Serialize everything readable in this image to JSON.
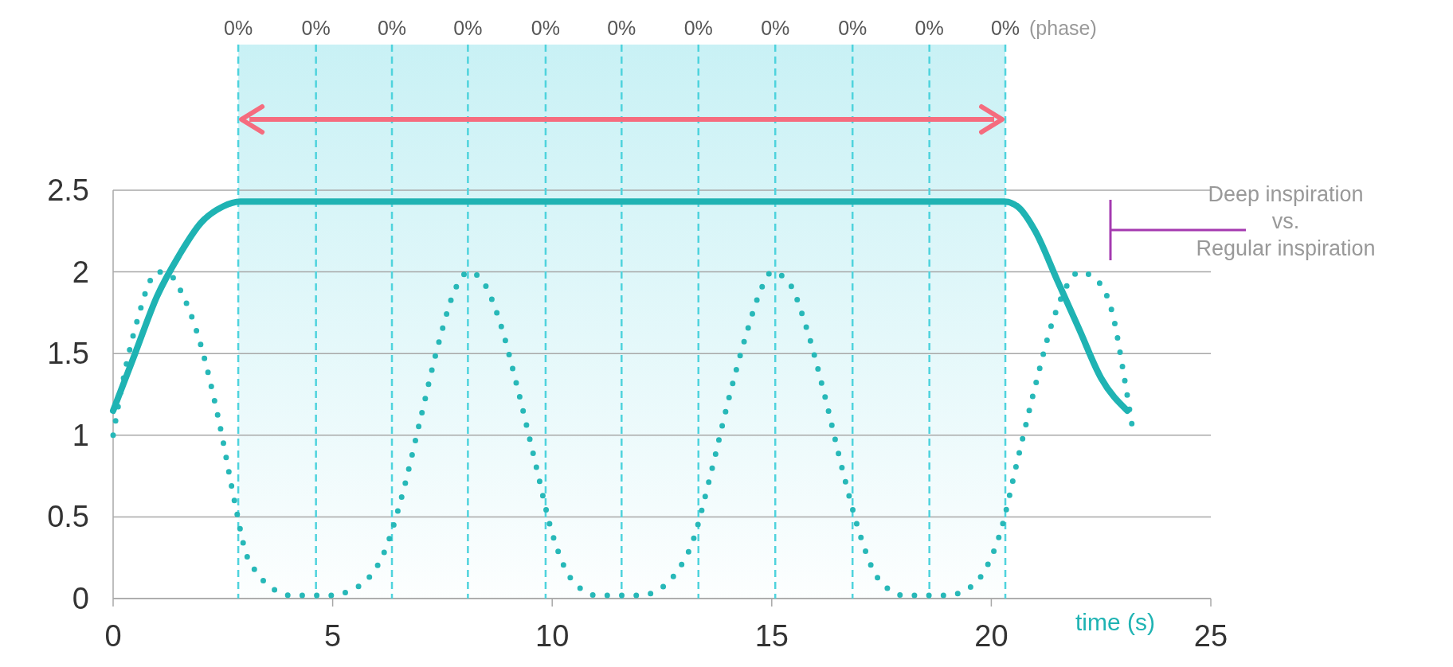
{
  "chart_data": {
    "type": "line",
    "xlabel": "time (s)",
    "xlim": [
      0,
      25
    ],
    "ylim": [
      0,
      2.5
    ],
    "xticks": [
      0,
      5,
      10,
      15,
      20,
      25
    ],
    "yticks": [
      0,
      0.5,
      1,
      1.5,
      2,
      2.5
    ],
    "grid": "y",
    "series": [
      {
        "color": "#27b8b8",
        "line_style": "dotted",
        "x": [
          0,
          0.2,
          0.4,
          0.6,
          0.8,
          1.0,
          1.3,
          1.6,
          2.0,
          2.4,
          2.8,
          3.0,
          3.3,
          3.7,
          4.0,
          4.5,
          5.0,
          5.4,
          5.8,
          6.2,
          6.6,
          7.0,
          7.4,
          7.8,
          8.1,
          8.4,
          8.8,
          9.2,
          9.6,
          10.0,
          10.3,
          10.7,
          11.0,
          11.5,
          12.0,
          12.4,
          12.8,
          13.2,
          13.6,
          14.0,
          14.4,
          14.8,
          15.0,
          15.4,
          15.8,
          16.2,
          16.6,
          17.0,
          17.3,
          17.7,
          18.0,
          18.5,
          19.0,
          19.4,
          19.8,
          20.2,
          20.6,
          21.0,
          21.4,
          21.8,
          22.0,
          22.4,
          22.8,
          23.0,
          23.2
        ],
        "values": [
          1.0,
          1.3,
          1.55,
          1.75,
          1.92,
          2.0,
          1.98,
          1.85,
          1.55,
          1.1,
          0.55,
          0.3,
          0.15,
          0.05,
          0.02,
          0.02,
          0.02,
          0.05,
          0.12,
          0.3,
          0.65,
          1.1,
          1.55,
          1.9,
          2.0,
          1.95,
          1.7,
          1.3,
          0.85,
          0.4,
          0.18,
          0.05,
          0.02,
          0.02,
          0.02,
          0.05,
          0.15,
          0.35,
          0.75,
          1.2,
          1.6,
          1.92,
          2.0,
          1.93,
          1.65,
          1.25,
          0.8,
          0.4,
          0.18,
          0.05,
          0.02,
          0.02,
          0.02,
          0.05,
          0.15,
          0.4,
          0.85,
          1.3,
          1.7,
          1.95,
          2.0,
          1.95,
          1.7,
          1.4,
          1.07
        ]
      },
      {
        "color": "#1fb3b3",
        "line_style": "solid",
        "x": [
          0,
          0.5,
          1,
          1.5,
          2,
          2.5,
          2.9,
          20.3,
          20.6,
          21,
          21.5,
          22,
          22.5,
          23.1
        ],
        "values": [
          1.15,
          1.5,
          1.85,
          2.1,
          2.3,
          2.4,
          2.43,
          2.43,
          2.4,
          2.25,
          1.95,
          1.65,
          1.35,
          1.15
        ]
      }
    ],
    "ref_lines": [
      {
        "axis": "x",
        "value": 2.85,
        "color": "#4fd3dd",
        "line_style": "dashed"
      },
      {
        "axis": "x",
        "value": 4.62,
        "color": "#4fd3dd",
        "line_style": "dashed"
      },
      {
        "axis": "x",
        "value": 6.35,
        "color": "#4fd3dd",
        "line_style": "dashed"
      },
      {
        "axis": "x",
        "value": 8.08,
        "color": "#4fd3dd",
        "line_style": "dashed"
      },
      {
        "axis": "x",
        "value": 9.85,
        "color": "#4fd3dd",
        "line_style": "dashed"
      },
      {
        "axis": "x",
        "value": 11.58,
        "color": "#4fd3dd",
        "line_style": "dashed"
      },
      {
        "axis": "x",
        "value": 13.33,
        "color": "#4fd3dd",
        "line_style": "dashed"
      },
      {
        "axis": "x",
        "value": 15.08,
        "color": "#4fd3dd",
        "line_style": "dashed"
      },
      {
        "axis": "x",
        "value": 16.84,
        "color": "#4fd3dd",
        "line_style": "dashed"
      },
      {
        "axis": "x",
        "value": 18.59,
        "color": "#4fd3dd",
        "line_style": "dashed"
      },
      {
        "axis": "x",
        "value": 20.32,
        "color": "#4fd3dd",
        "line_style": "dashed"
      }
    ],
    "bands": [
      {
        "axis": "x",
        "from": 2.85,
        "to": 20.32,
        "color": "#c9f1f5"
      }
    ],
    "annotations": [
      "(phase)",
      "Deep inspiration\nvs.\nRegular inspiration",
      "0%",
      "0%",
      "0%",
      "0%",
      "0%",
      "0%",
      "0%",
      "0%",
      "0%",
      "0%",
      "0%"
    ]
  }
}
